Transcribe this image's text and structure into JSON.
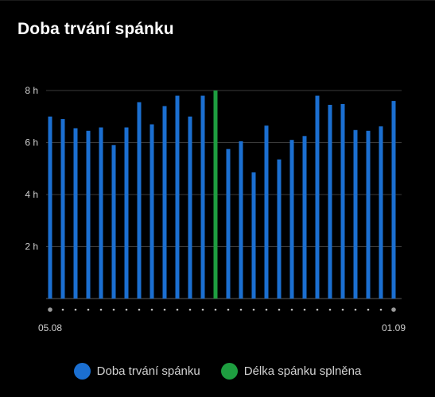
{
  "title": "Doba trvání spánku",
  "colors": {
    "background": "#000000",
    "bar": "#1b6fd1",
    "goal_bar": "#1e9e40",
    "grid": "#3a3a3a",
    "axis": "#8a8a8a",
    "label": "#cfcfcf"
  },
  "chart_data": {
    "type": "bar",
    "title": "Doba trvání spánku",
    "xlabel": "",
    "ylabel": "",
    "x_start_label": "05.08",
    "x_end_label": "01.09",
    "ylim": [
      0,
      8
    ],
    "yticks": [
      {
        "value": 2,
        "label": "2 h"
      },
      {
        "value": 4,
        "label": "4 h"
      },
      {
        "value": 6,
        "label": "6 h"
      },
      {
        "value": 8,
        "label": "8 h"
      }
    ],
    "grid": true,
    "legend_position": "bottom-center",
    "values": [
      7.0,
      6.9,
      6.55,
      6.45,
      6.58,
      5.9,
      6.58,
      7.55,
      6.7,
      7.4,
      7.8,
      7.0,
      7.8,
      8.0,
      5.75,
      6.05,
      4.85,
      6.65,
      5.35,
      6.1,
      6.25,
      7.8,
      7.45,
      7.48,
      6.48,
      6.45,
      6.62,
      7.6
    ],
    "goal_met": [
      false,
      false,
      false,
      false,
      false,
      false,
      false,
      false,
      false,
      false,
      false,
      false,
      false,
      true,
      false,
      false,
      false,
      false,
      false,
      false,
      false,
      false,
      false,
      false,
      false,
      false,
      false,
      false
    ],
    "series": [
      {
        "name": "Doba trvání spánku",
        "color": "#1b6fd1"
      },
      {
        "name": "Délka spánku splněna",
        "color": "#1e9e40"
      }
    ]
  }
}
